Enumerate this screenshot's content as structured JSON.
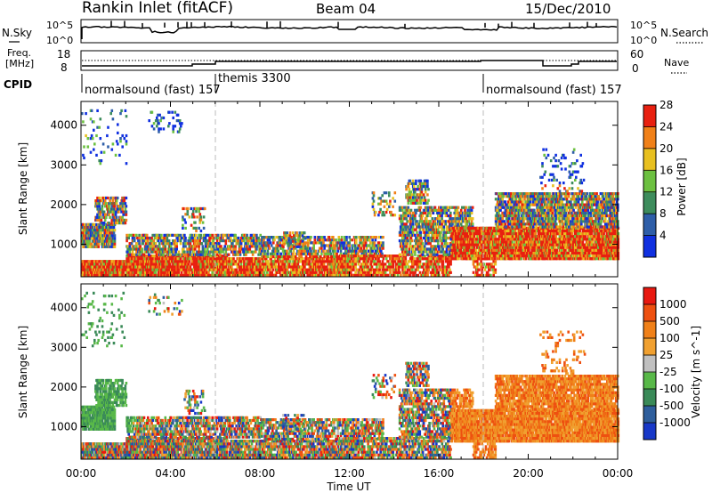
{
  "header": {
    "station": "Rankin Inlet (fitACF)",
    "beam": "Beam 04",
    "date": "15/Dec/2010"
  },
  "top_panels": {
    "nsky_label": "N.Sky",
    "nsky_ticks": [
      "10^5",
      "10^0"
    ],
    "nsearch_label": "N.Search",
    "nsearch_ticks": [
      "10^5",
      "10^0"
    ],
    "freq_label_line1": "Freq.",
    "freq_label_line2": "[MHz]",
    "freq_ticks": [
      "18",
      "8"
    ],
    "nave_label": "Nave",
    "nave_ticks": [
      "60",
      "0"
    ],
    "cpid_label": "CPID",
    "cpid_entries": [
      {
        "name": "normalsound (fast) 157",
        "start_hour": 0
      },
      {
        "name": "themis 3300",
        "start_hour": 6
      },
      {
        "name": "normalsound (fast) 157",
        "start_hour": 18
      }
    ]
  },
  "chart_data": [
    {
      "type": "heatmap",
      "panel": "power",
      "ylabel": "Slant Range [km]",
      "xlabel": "Time UT",
      "xlim_hours": [
        0,
        24
      ],
      "ylim_km": [
        180,
        4600
      ],
      "x_tick_labels": [
        "00:00",
        "04:00",
        "08:00",
        "12:00",
        "16:00",
        "20:00",
        "00:00"
      ],
      "y_tick_labels": [
        "1000",
        "2000",
        "3000",
        "4000"
      ],
      "colorbar": {
        "label": "Power [dB]",
        "tick_labels": [
          "4",
          "8",
          "12",
          "16",
          "20",
          "24",
          "28"
        ],
        "colors": [
          "#1030e0",
          "#2e5ea8",
          "#3d8c5c",
          "#6cc040",
          "#e8c020",
          "#f08018",
          "#e82010"
        ]
      }
    },
    {
      "type": "heatmap",
      "panel": "velocity",
      "ylabel": "Slant Range [km]",
      "xlabel": "Time UT",
      "xlim_hours": [
        0,
        24
      ],
      "ylim_km": [
        180,
        4600
      ],
      "x_tick_labels": [
        "00:00",
        "04:00",
        "08:00",
        "12:00",
        "16:00",
        "20:00",
        "00:00"
      ],
      "y_tick_labels": [
        "1000",
        "2000",
        "3000",
        "4000"
      ],
      "colorbar": {
        "label": "Velocity [m s^-1]",
        "tick_labels": [
          "1000",
          "500",
          "100",
          "25",
          "-25",
          "-100",
          "-500",
          "-1000"
        ],
        "colors": [
          "#1838c8",
          "#2e5e9c",
          "#3a8a58",
          "#58b848",
          "#c0c0c0",
          "#f0a030",
          "#f08018",
          "#ee5010",
          "#e81810"
        ]
      }
    }
  ]
}
